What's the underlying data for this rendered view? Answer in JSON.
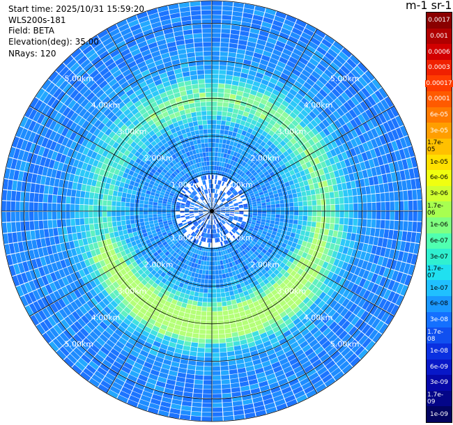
{
  "info": {
    "start_time": "Start time: 2025/10/31 15:59:20",
    "instrument": "WLS200s-181",
    "field": "Field: BETA",
    "elevation": "Elevation(deg): 35.00",
    "nrays": "NRays: 120"
  },
  "colorbar": {
    "title": "m-1 sr-1",
    "labels": [
      "0.0017",
      "0.001",
      "0.0006",
      "0.0003",
      "0.00017",
      "0.0001",
      "6e-05",
      "3e-05",
      "1.7e-05",
      "1e-05",
      "6e-06",
      "3e-06",
      "1.7e-06",
      "1e-06",
      "6e-07",
      "3e-07",
      "1.7e-07",
      "1e-07",
      "6e-08",
      "3e-08",
      "1.7e-08",
      "1e-08",
      "6e-09",
      "3e-09",
      "1.7e-09",
      "1e-09"
    ],
    "colors": [
      "#8a0000",
      "#b00000",
      "#d20000",
      "#f02000",
      "#ff3c00",
      "#ff5a00",
      "#ff7a00",
      "#ff9e00",
      "#ffc000",
      "#ffe000",
      "#f0ff10",
      "#d0ff30",
      "#a8ff50",
      "#80ff80",
      "#50ffb0",
      "#30f0d0",
      "#20e0f0",
      "#20c0ff",
      "#1a98ff",
      "#1470ff",
      "#1050f0",
      "#0a30e0",
      "#0818c8",
      "#0508a8",
      "#040688",
      "#020460"
    ],
    "light_text_indices": [
      0,
      1,
      2,
      3,
      4,
      5,
      6,
      7,
      19,
      20,
      21,
      22,
      23,
      24,
      25
    ]
  },
  "chart_data": {
    "type": "heatmap",
    "projection": "polar (PPI scan)",
    "field": "BETA",
    "units": "m-1 sr-1",
    "elevation_deg": 35.0,
    "n_rays": 120,
    "range_rings_km": [
      1.0,
      2.0,
      3.0,
      4.0,
      5.0
    ],
    "range_ring_labels": [
      "1.00km",
      "2.00km",
      "3.00km",
      "4.00km",
      "5.00km"
    ],
    "max_range_km": 5.6,
    "gridlines_deg": [
      0,
      30,
      60,
      90,
      120,
      150,
      180,
      210,
      240,
      270,
      300,
      330
    ],
    "bands": [
      {
        "range_km": [
          0.0,
          1.0
        ],
        "value": "~1e-08 to 3e-08 (sparse, many gaps)"
      },
      {
        "range_km": [
          1.0,
          2.4
        ],
        "value": "~3e-08 to 1e-07 (speckled blue)"
      },
      {
        "range_km": [
          2.4,
          3.6
        ],
        "value": "~1e-07 to 1.7e-06 (cyan/green ring, strongest toward south)"
      },
      {
        "range_km": [
          3.6,
          5.6
        ],
        "value": "~1e-08 to 6e-08 (blue)"
      }
    ]
  }
}
